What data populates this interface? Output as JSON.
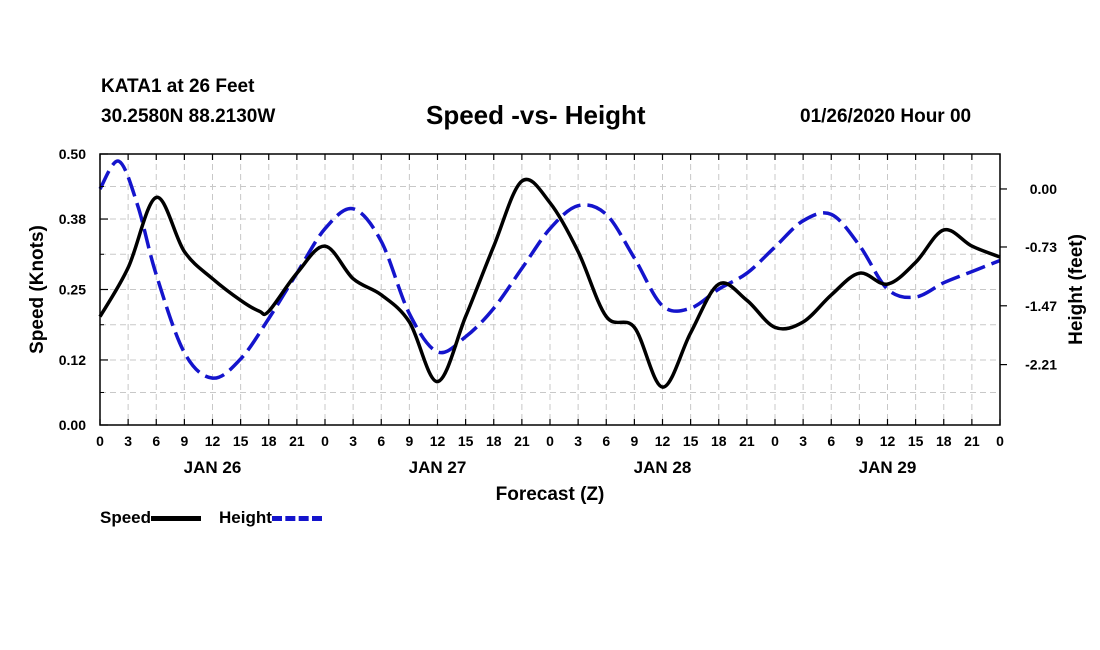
{
  "chart_data": {
    "type": "line",
    "title": "Speed -vs- Height",
    "station": "KATA1 at 26 Feet",
    "location": "30.2580N 88.2130W",
    "issued": "01/26/2020 Hour 00",
    "xlabel": "Forecast (Z)",
    "ylabel_left": "Speed (Knots)",
    "ylabel_right": "Height (feet)",
    "x_range_hours": [
      0,
      96
    ],
    "x_tick_labels": [
      "0",
      "3",
      "6",
      "9",
      "12",
      "15",
      "18",
      "21",
      "0",
      "3",
      "6",
      "9",
      "12",
      "15",
      "18",
      "21",
      "0",
      "3",
      "6",
      "9",
      "12",
      "15",
      "18",
      "21",
      "0",
      "3",
      "6",
      "9",
      "12",
      "15",
      "18",
      "21",
      "0"
    ],
    "day_labels": [
      {
        "text": "JAN 26",
        "hour": 12
      },
      {
        "text": "JAN 27",
        "hour": 36
      },
      {
        "text": "JAN 28",
        "hour": 60
      },
      {
        "text": "JAN 29",
        "hour": 84
      }
    ],
    "y_left": {
      "range": [
        0,
        0.5
      ],
      "ticks": [
        "0.00",
        "0.12",
        "0.25",
        "0.38",
        "0.50"
      ]
    },
    "y_right": {
      "range": [
        -2.97,
        0.44
      ],
      "ticks": [
        "0.00",
        "-0.73",
        "-1.47",
        "-2.21"
      ]
    },
    "grid": true,
    "series": [
      {
        "name": "Speed",
        "axis": "left",
        "color": "#000000",
        "style": "solid",
        "points": [
          [
            0,
            0.2
          ],
          [
            3,
            0.29
          ],
          [
            6,
            0.42
          ],
          [
            9,
            0.32
          ],
          [
            12,
            0.27
          ],
          [
            15,
            0.23
          ],
          [
            17,
            0.21
          ],
          [
            18,
            0.21
          ],
          [
            21,
            0.28
          ],
          [
            24,
            0.33
          ],
          [
            27,
            0.27
          ],
          [
            30,
            0.24
          ],
          [
            33,
            0.19
          ],
          [
            36,
            0.08
          ],
          [
            39,
            0.2
          ],
          [
            42,
            0.33
          ],
          [
            45,
            0.45
          ],
          [
            48,
            0.41
          ],
          [
            51,
            0.32
          ],
          [
            54,
            0.2
          ],
          [
            57,
            0.18
          ],
          [
            60,
            0.07
          ],
          [
            63,
            0.17
          ],
          [
            66,
            0.26
          ],
          [
            69,
            0.23
          ],
          [
            72,
            0.18
          ],
          [
            75,
            0.19
          ],
          [
            78,
            0.24
          ],
          [
            81,
            0.28
          ],
          [
            84,
            0.26
          ],
          [
            87,
            0.3
          ],
          [
            90,
            0.36
          ],
          [
            93,
            0.33
          ],
          [
            96,
            0.31
          ]
        ]
      },
      {
        "name": "Height",
        "axis": "right",
        "color": "#1414cc",
        "style": "dashed",
        "points": [
          [
            0,
            0.0
          ],
          [
            2,
            0.35
          ],
          [
            4,
            -0.2
          ],
          [
            6,
            -1.08
          ],
          [
            9,
            -2.06
          ],
          [
            12,
            -2.38
          ],
          [
            15,
            -2.14
          ],
          [
            18,
            -1.63
          ],
          [
            21,
            -1.06
          ],
          [
            24,
            -0.5
          ],
          [
            27,
            -0.25
          ],
          [
            30,
            -0.66
          ],
          [
            33,
            -1.57
          ],
          [
            36,
            -2.05
          ],
          [
            39,
            -1.86
          ],
          [
            42,
            -1.5
          ],
          [
            45,
            -1.0
          ],
          [
            48,
            -0.5
          ],
          [
            51,
            -0.21
          ],
          [
            54,
            -0.32
          ],
          [
            57,
            -0.87
          ],
          [
            60,
            -1.47
          ],
          [
            63,
            -1.5
          ],
          [
            66,
            -1.26
          ],
          [
            69,
            -1.06
          ],
          [
            72,
            -0.73
          ],
          [
            75,
            -0.4
          ],
          [
            78,
            -0.32
          ],
          [
            81,
            -0.71
          ],
          [
            84,
            -1.26
          ],
          [
            87,
            -1.36
          ],
          [
            90,
            -1.18
          ],
          [
            93,
            -1.04
          ],
          [
            96,
            -0.9
          ]
        ]
      }
    ]
  }
}
